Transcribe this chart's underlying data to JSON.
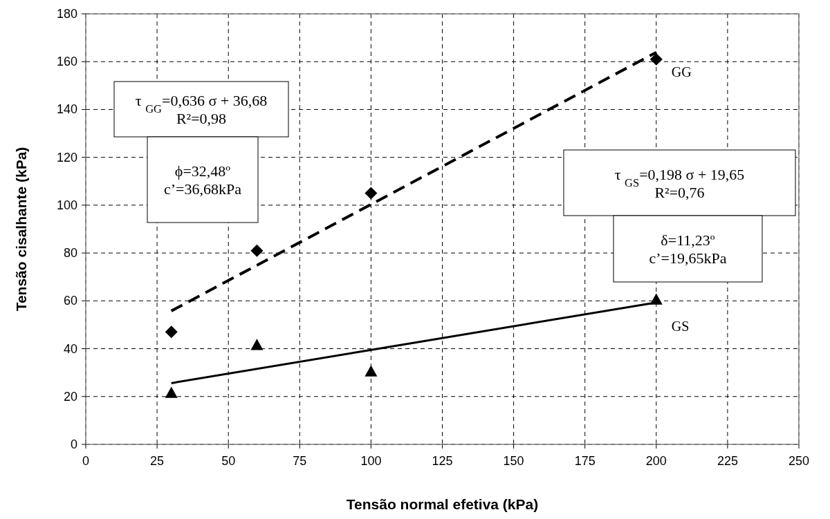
{
  "chart_data": {
    "type": "scatter",
    "xlabel": "Tensão normal efetiva (kPa)",
    "ylabel": "Tensão cisalhante (kPa)",
    "xlim": [
      0,
      250
    ],
    "xticks": [
      0,
      25,
      50,
      75,
      100,
      125,
      150,
      175,
      200,
      225,
      250
    ],
    "ylim": [
      0,
      180
    ],
    "yticks": [
      0,
      20,
      40,
      60,
      80,
      100,
      120,
      140,
      160,
      180
    ],
    "grid": true,
    "legend": false,
    "series": [
      {
        "name": "GG",
        "marker": "diamond",
        "color": "#000000",
        "x": [
          30,
          60,
          100,
          200
        ],
        "values": [
          47,
          81,
          105,
          161
        ]
      },
      {
        "name": "GS",
        "marker": "triangle",
        "color": "#000000",
        "x": [
          30,
          60,
          100,
          200
        ],
        "values": [
          21.5,
          41.5,
          30.5,
          60.5
        ]
      },
      {
        "type": "line",
        "line_style": "dashed",
        "color": "#000000",
        "x": [
          30,
          200
        ],
        "values": [
          55.8,
          163.9
        ]
      },
      {
        "type": "line",
        "line_style": "solid",
        "color": "#000000",
        "x": [
          30,
          200
        ],
        "values": [
          25.6,
          59.3
        ]
      }
    ],
    "annotations": [
      "τ $_{GG}$=0,636 σ + 36,68\nR²=0,98",
      "ϕ=32,48º\nc’=36,68kPa",
      "τ $_{GS}$=0,198 σ + 19,65\nR²=0,76",
      "δ=11,23º\nc’=19,65kPa"
    ]
  }
}
